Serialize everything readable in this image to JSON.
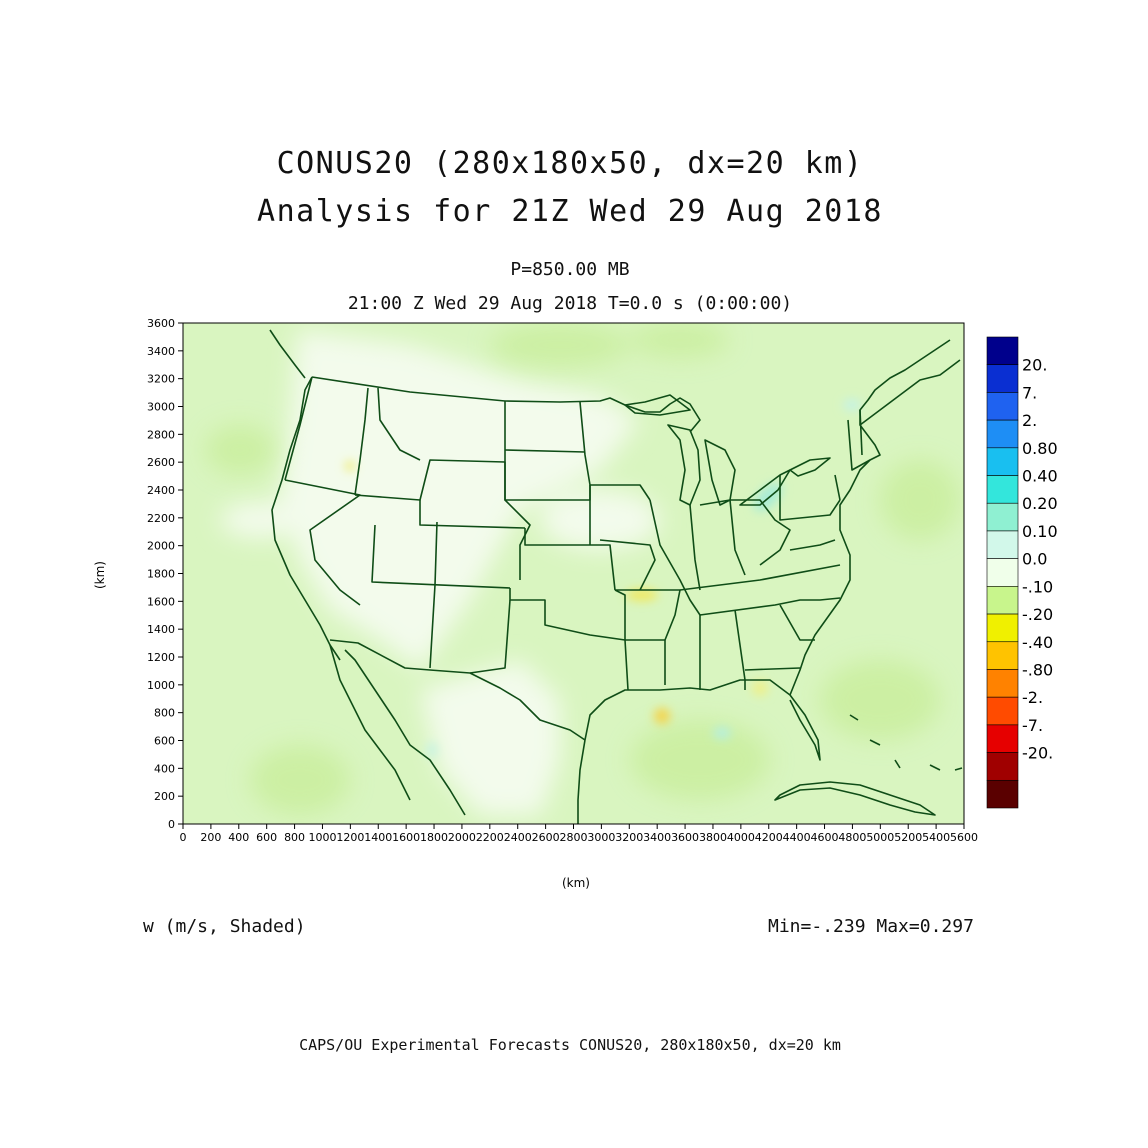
{
  "titles": {
    "line1": "CONUS20 (280x180x50, dx=20 km)",
    "line2": "Analysis for 21Z Wed 29 Aug 2018",
    "level": "P=850.00 MB",
    "time": "21:00 Z Wed 29 Aug 2018    T=0.0 s (0:00:00)"
  },
  "chart_data": {
    "type": "heatmap",
    "xlabel": "(km)",
    "ylabel": "(km)",
    "xlim": [
      0,
      5600
    ],
    "ylim": [
      0,
      3600
    ],
    "x_ticks": [
      "0",
      "200",
      "400",
      "600",
      "800",
      "1000",
      "1200",
      "1400",
      "1600",
      "1800",
      "2000",
      "2200",
      "2400",
      "2600",
      "2800",
      "3000",
      "3200",
      "3400",
      "3600",
      "3800",
      "4000",
      "4200",
      "4400",
      "4600",
      "4800",
      "5000",
      "5200",
      "5400",
      "5600"
    ],
    "y_ticks": [
      "0",
      "200",
      "400",
      "600",
      "800",
      "1000",
      "1200",
      "1400",
      "1600",
      "1800",
      "2000",
      "2200",
      "2400",
      "2600",
      "2800",
      "3000",
      "3200",
      "3400",
      "3600"
    ],
    "variable": "w (m/s, Shaded)",
    "min": "-.239",
    "max": "0.297",
    "colorbar": {
      "labels": [
        "20.",
        "7.",
        "2.",
        "0.80",
        "0.40",
        "0.20",
        "0.10",
        "0.0",
        "-.10",
        "-.20",
        "-.40",
        "-.80",
        "-2.",
        "-7.",
        "-20."
      ],
      "colors": [
        "#00008c",
        "#0a2fd2",
        "#1f62f0",
        "#1e8ef5",
        "#19bff0",
        "#33e6dc",
        "#8ff0d2",
        "#d2f8ea",
        "#f0ffea",
        "#c8f58c",
        "#f0f000",
        "#ffc300",
        "#ff8200",
        "#ff4b00",
        "#e60000",
        "#a00000",
        "#5a0000"
      ]
    },
    "features": [
      {
        "name": "weak ascent, Lake Erie",
        "x": 3980,
        "y": 2350,
        "value": 0.2
      },
      {
        "name": "weak ascent, Gulf of Maine",
        "x": 4780,
        "y": 3000,
        "value": 0.1
      },
      {
        "name": "weak ascent, Gulf of Mexico",
        "x": 3860,
        "y": 660,
        "value": 0.1
      },
      {
        "name": "weak ascent, Mexico",
        "x": 1780,
        "y": 560,
        "value": 0.1
      },
      {
        "name": "weak descent, Arkansas/Oklahoma",
        "x": 3270,
        "y": 1620,
        "value": -0.2
      },
      {
        "name": "weak descent, Gulf of Mexico",
        "x": 3420,
        "y": 780,
        "value": -0.239
      },
      {
        "name": "weak descent, off Florida",
        "x": 4150,
        "y": 940,
        "value": -0.1
      }
    ]
  },
  "footer": "CAPS/OU Experimental Forecasts  CONUS20, 280x180x50, dx=20 km"
}
